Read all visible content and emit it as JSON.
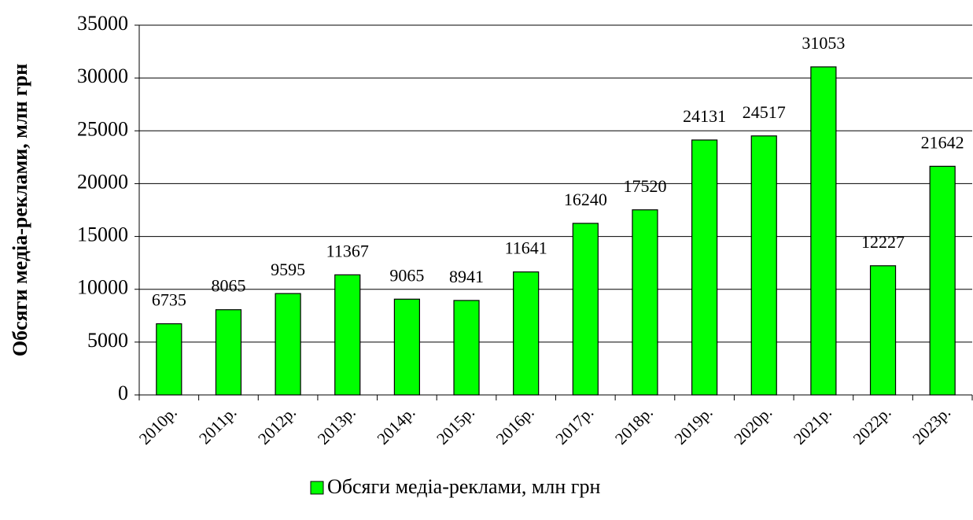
{
  "chart_data": {
    "type": "bar",
    "y_axis_label": "Обсяги медіа-реклами, млн грн",
    "categories": [
      "2010р.",
      "2011р.",
      "2012р.",
      "2013р.",
      "2014р.",
      "2015р.",
      "2016р.",
      "2017р.",
      "2018р.",
      "2019р.",
      "2020р.",
      "2021р.",
      "2022р.",
      "2023р."
    ],
    "series": [
      {
        "name": "Обсяги медіа-реклами, млн грн",
        "color": "#00ff00",
        "values": [
          6735,
          8065,
          9595,
          11367,
          9065,
          8941,
          11641,
          16240,
          17520,
          24131,
          24517,
          31053,
          12227,
          21642
        ]
      }
    ],
    "ylim": [
      0,
      35000
    ],
    "yticks": [
      0,
      5000,
      10000,
      15000,
      20000,
      25000,
      30000,
      35000
    ],
    "grid": true,
    "legend": "bottom"
  }
}
